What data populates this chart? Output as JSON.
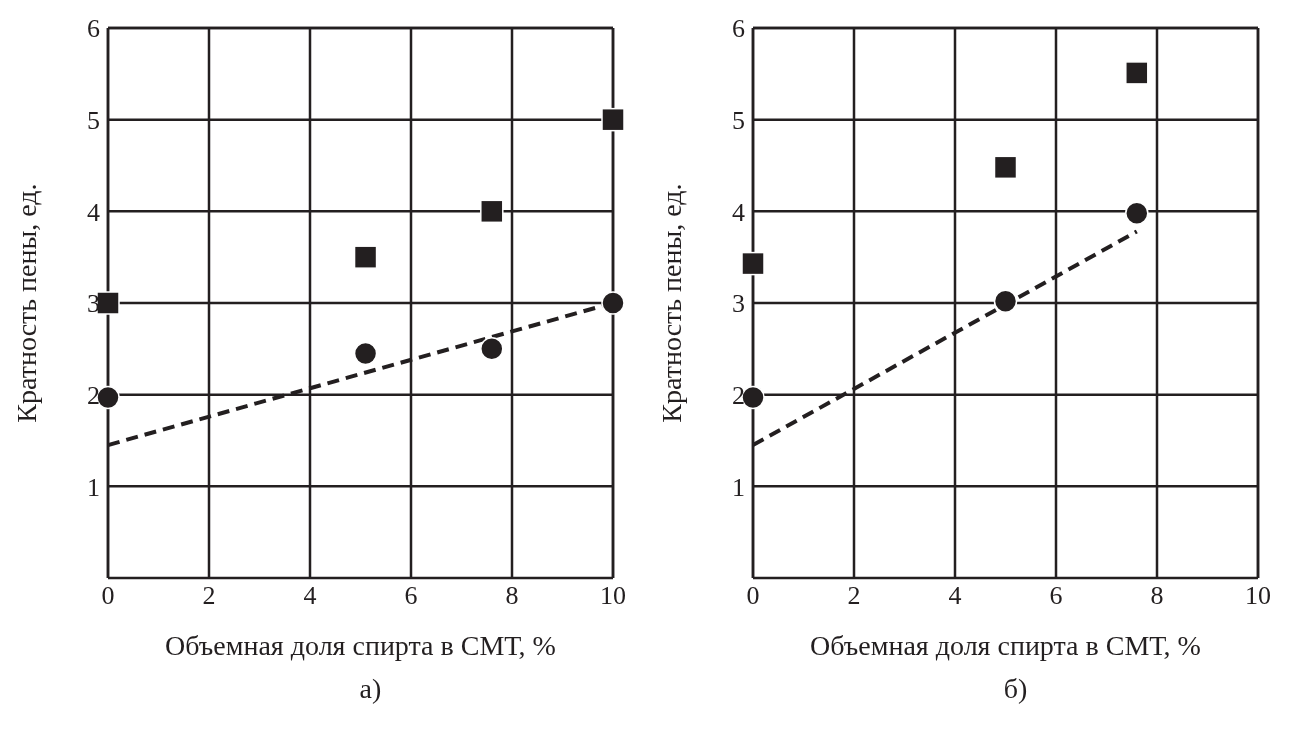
{
  "chart_data": [
    {
      "type": "scatter",
      "xlabel": "Объемная доля спирта в СМТ, %",
      "ylabel": "Кратность пены, ед.",
      "annotations": [
        "а)"
      ],
      "xlim": [
        0,
        10
      ],
      "ylim": [
        0,
        6
      ],
      "xticks": [
        0,
        2,
        4,
        6,
        8,
        10
      ],
      "yticks": [
        1,
        2,
        3,
        4,
        5,
        6
      ],
      "grid": true,
      "series": [
        {
          "marker": "square",
          "color": "#231f20",
          "x": [
            0,
            5.1,
            7.6,
            10
          ],
          "values": [
            3.0,
            3.5,
            4.0,
            5.0
          ]
        },
        {
          "marker": "circle",
          "color": "#231f20",
          "x": [
            0,
            5.1,
            7.6,
            10
          ],
          "values": [
            1.97,
            2.45,
            2.5,
            3.0
          ]
        },
        {
          "type": "line",
          "marker": "none",
          "line_style": "dashed",
          "color": "#231f20",
          "x": [
            0,
            10
          ],
          "values": [
            1.45,
            3.0
          ]
        }
      ]
    },
    {
      "type": "scatter",
      "xlabel": "Объемная доля спирта в СМТ, %",
      "ylabel": "Кратность пены, ед.",
      "annotations": [
        "б)"
      ],
      "xlim": [
        0,
        10
      ],
      "ylim": [
        0,
        6
      ],
      "xticks": [
        0,
        2,
        4,
        6,
        8,
        10
      ],
      "yticks": [
        1,
        2,
        3,
        4,
        5,
        6
      ],
      "grid": true,
      "series": [
        {
          "marker": "square",
          "color": "#231f20",
          "x": [
            0,
            5.0,
            7.6
          ],
          "values": [
            3.43,
            4.48,
            5.51
          ]
        },
        {
          "marker": "circle",
          "color": "#231f20",
          "x": [
            0,
            5.0,
            7.6
          ],
          "values": [
            1.97,
            3.02,
            3.98
          ]
        },
        {
          "type": "line",
          "marker": "none",
          "line_style": "dashed",
          "color": "#231f20",
          "x": [
            0,
            7.6
          ],
          "values": [
            1.45,
            3.78
          ]
        }
      ]
    }
  ]
}
